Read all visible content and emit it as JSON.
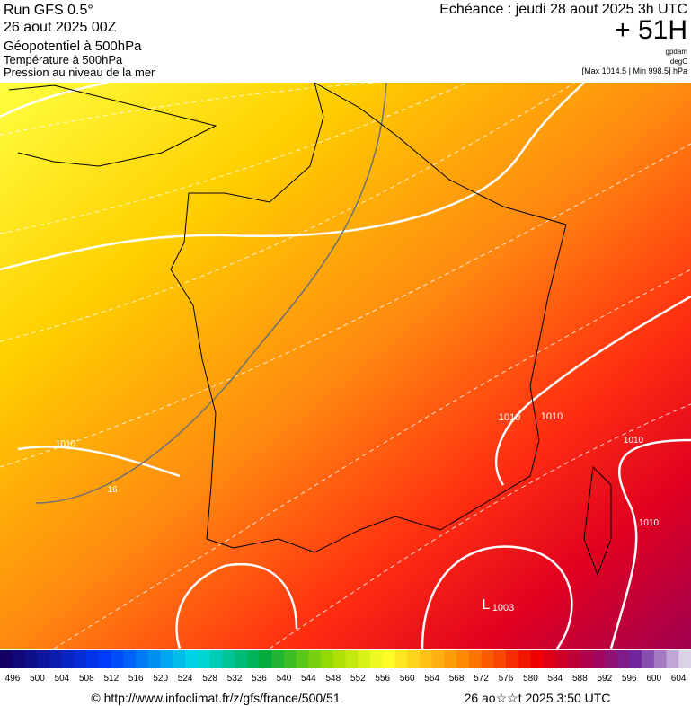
{
  "header": {
    "run": "Run GFS 0.5°",
    "date": "26 aout 2025 00Z",
    "field1": "Géopotentiel à 500hPa",
    "field2": "Température à 500hPa",
    "field3": "Pression au niveau de la mer",
    "echeance": "Echéance : jeudi 28 aout 2025 3h UTC",
    "lead": "+ 51H",
    "unit1": "gpdam",
    "unit2": "degC",
    "range": "[Max 1014.5 | Min 998.5] hPa"
  },
  "map": {
    "contour_labels": [
      "1010",
      "1010",
      "1010",
      "1010",
      "1010",
      "16",
      "L",
      "1003"
    ]
  },
  "colorbar": {
    "labels": [
      496,
      500,
      504,
      508,
      512,
      516,
      520,
      524,
      528,
      532,
      536,
      540,
      544,
      548,
      552,
      556,
      560,
      564,
      568,
      572,
      576,
      580,
      584,
      588,
      592,
      596,
      600,
      604
    ]
  },
  "footer": {
    "url": "© http://www.infoclimat.fr/z/gfs/france/500/51",
    "time": "26 ao☆☆t 2025  3:50 UTC"
  }
}
